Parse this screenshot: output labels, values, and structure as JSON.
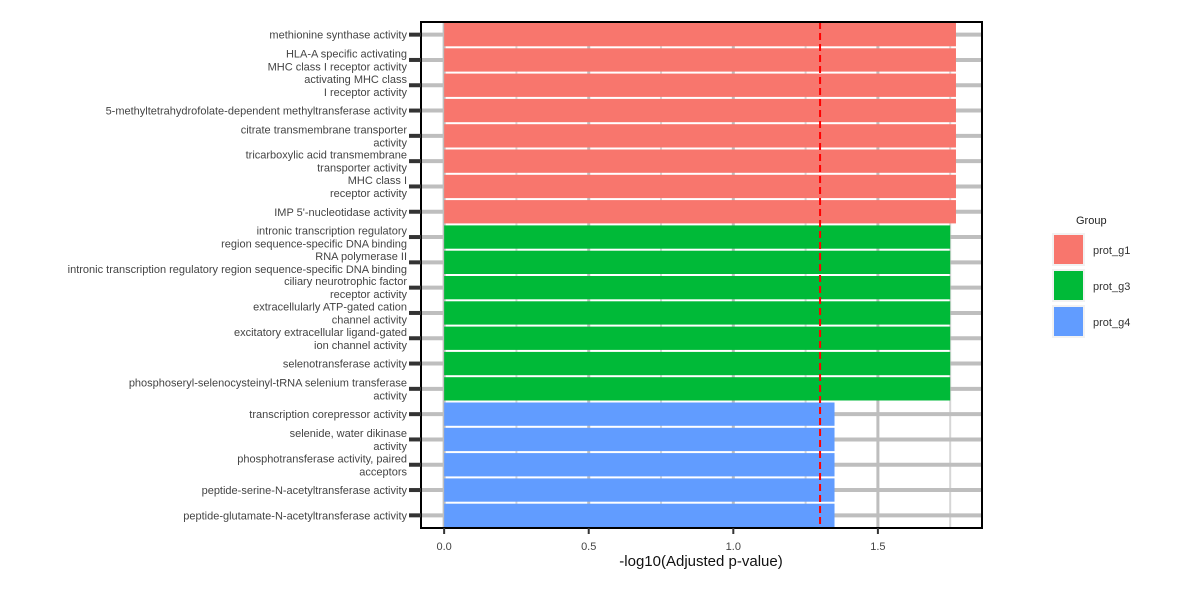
{
  "chart_data": {
    "type": "bar",
    "orientation": "horizontal",
    "xlabel": "-log10(Adjusted p-value)",
    "ylabel": "",
    "title": "",
    "xlim": [
      -0.08,
      1.86
    ],
    "x_ticks": [
      "0.0",
      "0.5",
      "1.0",
      "1.5"
    ],
    "x_tick_values": [
      0,
      0.5,
      1,
      1.5
    ],
    "threshold": 1.3,
    "threshold_color": "#ff0000",
    "grid": true,
    "legend_position": "right",
    "legend": {
      "title": "Group",
      "items": [
        {
          "label": "prot_g1",
          "color": "#F8766D"
        },
        {
          "label": "prot_g3",
          "color": "#00BA38"
        },
        {
          "label": "prot_g4",
          "color": "#619CFF"
        }
      ]
    },
    "categories": [
      [
        "methionine synthase activity"
      ],
      [
        "HLA-A specific activating",
        "MHC class I receptor activity"
      ],
      [
        "activating MHC class",
        "I receptor activity"
      ],
      [
        "5-methyltetrahydrofolate-dependent methyltransferase activity"
      ],
      [
        "citrate transmembrane transporter",
        "activity"
      ],
      [
        "tricarboxylic acid transmembrane",
        "transporter activity"
      ],
      [
        "MHC class I",
        "receptor activity"
      ],
      [
        "IMP 5'-nucleotidase activity"
      ],
      [
        "intronic transcription regulatory",
        "region sequence-specific DNA binding"
      ],
      [
        "RNA polymerase II",
        "intronic transcription regulatory region sequence-specific DNA binding"
      ],
      [
        "ciliary neurotrophic factor",
        "receptor activity"
      ],
      [
        "extracellularly ATP-gated cation",
        "channel activity"
      ],
      [
        "excitatory extracellular ligand-gated",
        "ion channel activity"
      ],
      [
        "selenotransferase activity"
      ],
      [
        "phosphoseryl-selenocysteinyl-tRNA selenium transferase",
        "activity"
      ],
      [
        "transcription corepressor activity"
      ],
      [
        "selenide, water dikinase",
        "activity"
      ],
      [
        "phosphotransferase activity, paired",
        "acceptors"
      ],
      [
        "peptide-serine-N-acetyltransferase activity"
      ],
      [
        "peptide-glutamate-N-acetyltransferase activity"
      ]
    ],
    "values": [
      1.77,
      1.77,
      1.77,
      1.77,
      1.77,
      1.77,
      1.77,
      1.77,
      1.75,
      1.75,
      1.75,
      1.75,
      1.75,
      1.75,
      1.75,
      1.35,
      1.35,
      1.35,
      1.35,
      1.35
    ],
    "groups": [
      "prot_g1",
      "prot_g1",
      "prot_g1",
      "prot_g1",
      "prot_g1",
      "prot_g1",
      "prot_g1",
      "prot_g1",
      "prot_g3",
      "prot_g3",
      "prot_g3",
      "prot_g3",
      "prot_g3",
      "prot_g3",
      "prot_g3",
      "prot_g4",
      "prot_g4",
      "prot_g4",
      "prot_g4",
      "prot_g4"
    ]
  }
}
